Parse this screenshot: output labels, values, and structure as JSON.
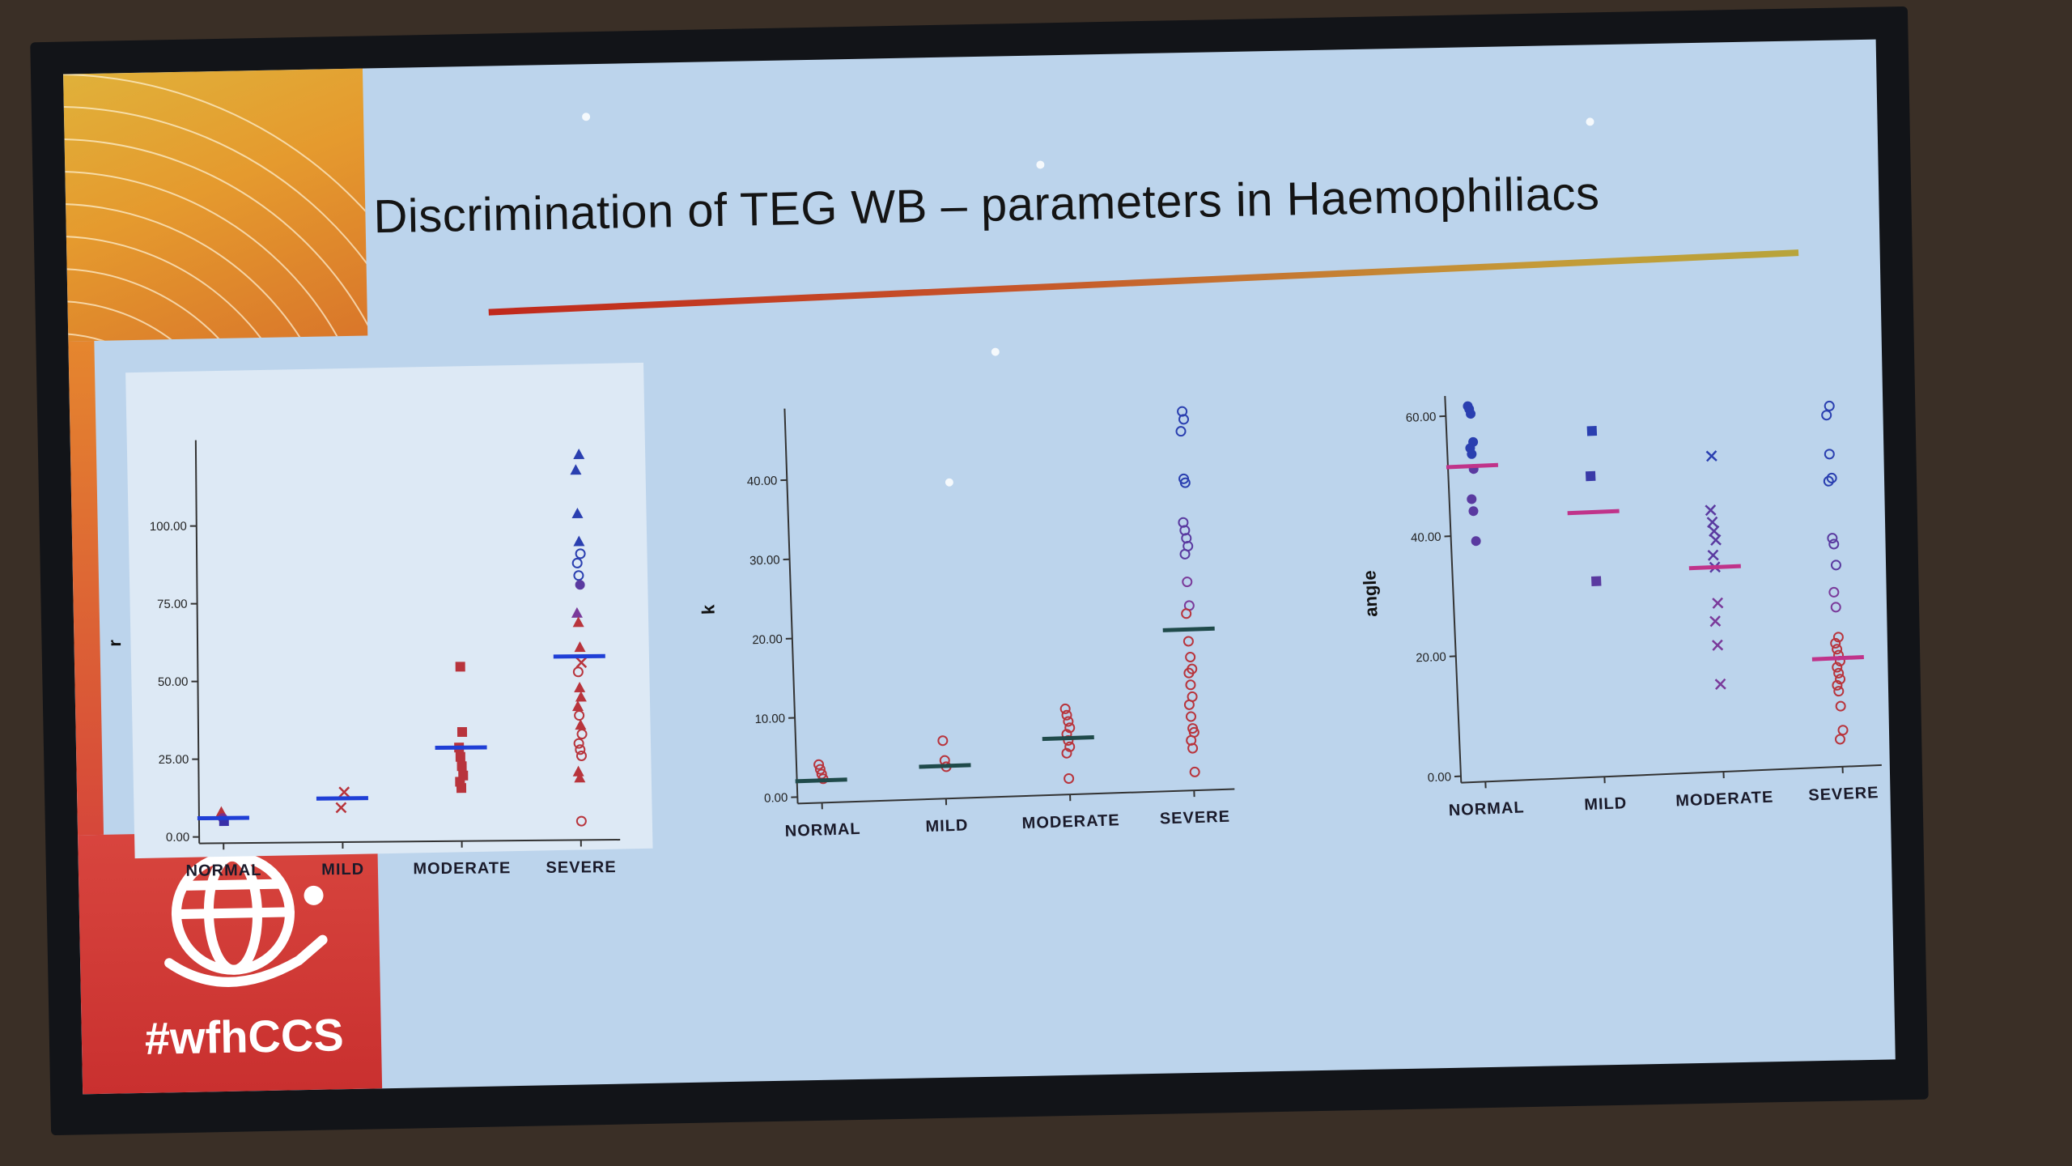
{
  "slide": {
    "title": "Discrimination of TEG WB – parameters in Haemophiliacs",
    "hashtag": "#wfhCCS",
    "brand_colors": {
      "orange": "#e59a2e",
      "red": "#d23b35"
    },
    "logo_icon": "globe-hand-icon"
  },
  "chart_data": [
    {
      "type": "scatter",
      "title": "",
      "ylabel": "r",
      "xlabel": "",
      "categories": [
        "NORMAL",
        "MILD",
        "MODERATE",
        "SEVERE"
      ],
      "yticks": [
        "0.00",
        "25.00",
        "50.00",
        "75.00",
        "100.00"
      ],
      "ylim": [
        0,
        125
      ],
      "mean_color": "#1f3fd6",
      "points": [
        {
          "cat": "NORMAL",
          "y": 8,
          "marker": "triangle",
          "color": "#b8343c"
        },
        {
          "cat": "NORMAL",
          "y": 6,
          "marker": "circle-filled",
          "color": "#7a2e8a"
        },
        {
          "cat": "NORMAL",
          "y": 5,
          "marker": "square",
          "color": "#3a2fa8"
        },
        {
          "cat": "MILD",
          "y": 14,
          "marker": "x",
          "color": "#b8343c"
        },
        {
          "cat": "MILD",
          "y": 9,
          "marker": "x",
          "color": "#b8343c"
        },
        {
          "cat": "MODERATE",
          "y": 54,
          "marker": "square",
          "color": "#b8343c"
        },
        {
          "cat": "MODERATE",
          "y": 33,
          "marker": "square",
          "color": "#b8343c"
        },
        {
          "cat": "MODERATE",
          "y": 28,
          "marker": "square",
          "color": "#b8343c"
        },
        {
          "cat": "MODERATE",
          "y": 25,
          "marker": "square",
          "color": "#b8343c"
        },
        {
          "cat": "MODERATE",
          "y": 22,
          "marker": "square",
          "color": "#b8343c"
        },
        {
          "cat": "MODERATE",
          "y": 19,
          "marker": "square",
          "color": "#b8343c"
        },
        {
          "cat": "MODERATE",
          "y": 17,
          "marker": "square",
          "color": "#b8343c"
        },
        {
          "cat": "MODERATE",
          "y": 15,
          "marker": "square",
          "color": "#b8343c"
        },
        {
          "cat": "SEVERE",
          "y": 122,
          "marker": "triangle",
          "color": "#2a3fb0"
        },
        {
          "cat": "SEVERE",
          "y": 117,
          "marker": "triangle",
          "color": "#2a3fb0"
        },
        {
          "cat": "SEVERE",
          "y": 103,
          "marker": "triangle",
          "color": "#2a3fb0"
        },
        {
          "cat": "SEVERE",
          "y": 94,
          "marker": "triangle",
          "color": "#2a3fb0"
        },
        {
          "cat": "SEVERE",
          "y": 90,
          "marker": "circle",
          "color": "#2a3fb0"
        },
        {
          "cat": "SEVERE",
          "y": 87,
          "marker": "circle",
          "color": "#2a3fb0"
        },
        {
          "cat": "SEVERE",
          "y": 83,
          "marker": "circle",
          "color": "#2a3fb0"
        },
        {
          "cat": "SEVERE",
          "y": 80,
          "marker": "circle-filled",
          "color": "#5a3aa0"
        },
        {
          "cat": "SEVERE",
          "y": 71,
          "marker": "triangle",
          "color": "#7a3a9a"
        },
        {
          "cat": "SEVERE",
          "y": 68,
          "marker": "triangle",
          "color": "#b8343c"
        },
        {
          "cat": "SEVERE",
          "y": 60,
          "marker": "triangle",
          "color": "#b8343c"
        },
        {
          "cat": "SEVERE",
          "y": 55,
          "marker": "x",
          "color": "#b8343c"
        },
        {
          "cat": "SEVERE",
          "y": 52,
          "marker": "circle",
          "color": "#b8343c"
        },
        {
          "cat": "SEVERE",
          "y": 47,
          "marker": "triangle",
          "color": "#b8343c"
        },
        {
          "cat": "SEVERE",
          "y": 44,
          "marker": "triangle",
          "color": "#b8343c"
        },
        {
          "cat": "SEVERE",
          "y": 41,
          "marker": "triangle",
          "color": "#b8343c"
        },
        {
          "cat": "SEVERE",
          "y": 38,
          "marker": "circle",
          "color": "#b8343c"
        },
        {
          "cat": "SEVERE",
          "y": 35,
          "marker": "triangle",
          "color": "#b8343c"
        },
        {
          "cat": "SEVERE",
          "y": 32,
          "marker": "circle",
          "color": "#b8343c"
        },
        {
          "cat": "SEVERE",
          "y": 29,
          "marker": "circle",
          "color": "#b8343c"
        },
        {
          "cat": "SEVERE",
          "y": 27,
          "marker": "circle",
          "color": "#b8343c"
        },
        {
          "cat": "SEVERE",
          "y": 25,
          "marker": "circle",
          "color": "#b8343c"
        },
        {
          "cat": "SEVERE",
          "y": 20,
          "marker": "triangle",
          "color": "#b8343c"
        },
        {
          "cat": "SEVERE",
          "y": 18,
          "marker": "triangle",
          "color": "#b8343c"
        },
        {
          "cat": "SEVERE",
          "y": 4,
          "marker": "circle",
          "color": "#b8343c"
        }
      ],
      "means": [
        {
          "cat": "NORMAL",
          "y": 6
        },
        {
          "cat": "MILD",
          "y": 12
        },
        {
          "cat": "MODERATE",
          "y": 28
        },
        {
          "cat": "SEVERE",
          "y": 57
        }
      ]
    },
    {
      "type": "scatter",
      "title": "",
      "ylabel": "k",
      "xlabel": "",
      "categories": [
        "NORMAL",
        "MILD",
        "MODERATE",
        "SEVERE"
      ],
      "yticks": [
        "0.00",
        "10.00",
        "20.00",
        "30.00",
        "40.00"
      ],
      "ylim": [
        0,
        48
      ],
      "mean_color": "#1f4a4a",
      "points": [
        {
          "cat": "NORMAL",
          "y": 4,
          "marker": "circle",
          "color": "#b8343c"
        },
        {
          "cat": "NORMAL",
          "y": 3.4,
          "marker": "circle",
          "color": "#b8343c"
        },
        {
          "cat": "NORMAL",
          "y": 2.8,
          "marker": "circle",
          "color": "#b8343c"
        },
        {
          "cat": "NORMAL",
          "y": 2.2,
          "marker": "circle",
          "color": "#b8343c"
        },
        {
          "cat": "MILD",
          "y": 6.5,
          "marker": "circle",
          "color": "#b8343c"
        },
        {
          "cat": "MILD",
          "y": 4,
          "marker": "circle",
          "color": "#b8343c"
        },
        {
          "cat": "MILD",
          "y": 3.2,
          "marker": "circle",
          "color": "#b8343c"
        },
        {
          "cat": "MODERATE",
          "y": 10,
          "marker": "circle",
          "color": "#b8343c"
        },
        {
          "cat": "MODERATE",
          "y": 9.2,
          "marker": "circle",
          "color": "#b8343c"
        },
        {
          "cat": "MODERATE",
          "y": 8.4,
          "marker": "circle",
          "color": "#b8343c"
        },
        {
          "cat": "MODERATE",
          "y": 7.6,
          "marker": "circle",
          "color": "#b8343c"
        },
        {
          "cat": "MODERATE",
          "y": 6.8,
          "marker": "circle",
          "color": "#b8343c"
        },
        {
          "cat": "MODERATE",
          "y": 6.0,
          "marker": "circle",
          "color": "#b8343c"
        },
        {
          "cat": "MODERATE",
          "y": 5.2,
          "marker": "circle",
          "color": "#b8343c"
        },
        {
          "cat": "MODERATE",
          "y": 4.4,
          "marker": "circle",
          "color": "#b8343c"
        },
        {
          "cat": "MODERATE",
          "y": 1.2,
          "marker": "circle",
          "color": "#b8343c"
        },
        {
          "cat": "SEVERE",
          "y": 47,
          "marker": "circle",
          "color": "#2a3fb0"
        },
        {
          "cat": "SEVERE",
          "y": 46,
          "marker": "circle",
          "color": "#2a3fb0"
        },
        {
          "cat": "SEVERE",
          "y": 44.5,
          "marker": "circle",
          "color": "#2a3fb0"
        },
        {
          "cat": "SEVERE",
          "y": 38.5,
          "marker": "circle",
          "color": "#2a3fb0"
        },
        {
          "cat": "SEVERE",
          "y": 38,
          "marker": "circle",
          "color": "#2a3fb0"
        },
        {
          "cat": "SEVERE",
          "y": 33,
          "marker": "circle",
          "color": "#5a3aa0"
        },
        {
          "cat": "SEVERE",
          "y": 32,
          "marker": "circle",
          "color": "#5a3aa0"
        },
        {
          "cat": "SEVERE",
          "y": 31,
          "marker": "circle",
          "color": "#5a3aa0"
        },
        {
          "cat": "SEVERE",
          "y": 30,
          "marker": "circle",
          "color": "#5a3aa0"
        },
        {
          "cat": "SEVERE",
          "y": 29,
          "marker": "circle",
          "color": "#5a3aa0"
        },
        {
          "cat": "SEVERE",
          "y": 25.5,
          "marker": "circle",
          "color": "#7a3a9a"
        },
        {
          "cat": "SEVERE",
          "y": 22.5,
          "marker": "circle",
          "color": "#7a3a9a"
        },
        {
          "cat": "SEVERE",
          "y": 21.5,
          "marker": "circle",
          "color": "#b8343c"
        },
        {
          "cat": "SEVERE",
          "y": 18,
          "marker": "circle",
          "color": "#b8343c"
        },
        {
          "cat": "SEVERE",
          "y": 16,
          "marker": "circle",
          "color": "#b8343c"
        },
        {
          "cat": "SEVERE",
          "y": 14.5,
          "marker": "circle",
          "color": "#b8343c"
        },
        {
          "cat": "SEVERE",
          "y": 14,
          "marker": "circle",
          "color": "#b8343c"
        },
        {
          "cat": "SEVERE",
          "y": 12.5,
          "marker": "circle",
          "color": "#b8343c"
        },
        {
          "cat": "SEVERE",
          "y": 11,
          "marker": "circle",
          "color": "#b8343c"
        },
        {
          "cat": "SEVERE",
          "y": 10,
          "marker": "circle",
          "color": "#b8343c"
        },
        {
          "cat": "SEVERE",
          "y": 8.5,
          "marker": "circle",
          "color": "#b8343c"
        },
        {
          "cat": "SEVERE",
          "y": 7,
          "marker": "circle",
          "color": "#b8343c"
        },
        {
          "cat": "SEVERE",
          "y": 6.5,
          "marker": "circle",
          "color": "#b8343c"
        },
        {
          "cat": "SEVERE",
          "y": 5.5,
          "marker": "circle",
          "color": "#b8343c"
        },
        {
          "cat": "SEVERE",
          "y": 4.5,
          "marker": "circle",
          "color": "#b8343c"
        },
        {
          "cat": "SEVERE",
          "y": 1.5,
          "marker": "circle",
          "color": "#b8343c"
        }
      ],
      "means": [
        {
          "cat": "NORMAL",
          "y": 2
        },
        {
          "cat": "MILD",
          "y": 3.3
        },
        {
          "cat": "MODERATE",
          "y": 6.3
        },
        {
          "cat": "SEVERE",
          "y": 19.5
        }
      ]
    },
    {
      "type": "scatter",
      "title": "",
      "ylabel": "angle",
      "xlabel": "",
      "categories": [
        "NORMAL",
        "MILD",
        "MODERATE",
        "SEVERE"
      ],
      "yticks": [
        "0.00",
        "20.00",
        "40.00",
        "60.00"
      ],
      "ylim": [
        0,
        62
      ],
      "mean_color": "#c0338a",
      "points": [
        {
          "cat": "NORMAL",
          "y": 61.5,
          "marker": "circle-filled",
          "color": "#2a3fb0"
        },
        {
          "cat": "NORMAL",
          "y": 61,
          "marker": "circle-filled",
          "color": "#2a3fb0"
        },
        {
          "cat": "NORMAL",
          "y": 60.2,
          "marker": "circle-filled",
          "color": "#2a3fb0"
        },
        {
          "cat": "NORMAL",
          "y": 55.5,
          "marker": "circle-filled",
          "color": "#2a3fb0"
        },
        {
          "cat": "NORMAL",
          "y": 54.5,
          "marker": "circle-filled",
          "color": "#2a3fb0"
        },
        {
          "cat": "NORMAL",
          "y": 53.5,
          "marker": "circle-filled",
          "color": "#2a3fb0"
        },
        {
          "cat": "NORMAL",
          "y": 51,
          "marker": "circle-filled",
          "color": "#5a3aa0"
        },
        {
          "cat": "NORMAL",
          "y": 46,
          "marker": "circle-filled",
          "color": "#5a3aa0"
        },
        {
          "cat": "NORMAL",
          "y": 44,
          "marker": "circle-filled",
          "color": "#5a3aa0"
        },
        {
          "cat": "NORMAL",
          "y": 39,
          "marker": "circle-filled",
          "color": "#5a3aa0"
        },
        {
          "cat": "MILD",
          "y": 56.5,
          "marker": "square",
          "color": "#2a3fb0"
        },
        {
          "cat": "MILD",
          "y": 49,
          "marker": "square",
          "color": "#3a3aa8"
        },
        {
          "cat": "MILD",
          "y": 31.5,
          "marker": "square",
          "color": "#5a3aa0"
        },
        {
          "cat": "MODERATE",
          "y": 51.5,
          "marker": "x",
          "color": "#2a3fb0"
        },
        {
          "cat": "MODERATE",
          "y": 42.5,
          "marker": "x",
          "color": "#5a3aa0"
        },
        {
          "cat": "MODERATE",
          "y": 40.5,
          "marker": "x",
          "color": "#5a3aa0"
        },
        {
          "cat": "MODERATE",
          "y": 39,
          "marker": "x",
          "color": "#5a3aa0"
        },
        {
          "cat": "MODERATE",
          "y": 37.5,
          "marker": "x",
          "color": "#5a3aa0"
        },
        {
          "cat": "MODERATE",
          "y": 35,
          "marker": "x",
          "color": "#5a3aa0"
        },
        {
          "cat": "MODERATE",
          "y": 33,
          "marker": "x",
          "color": "#5a3aa0"
        },
        {
          "cat": "MODERATE",
          "y": 27,
          "marker": "x",
          "color": "#7a3a9a"
        },
        {
          "cat": "MODERATE",
          "y": 24,
          "marker": "x",
          "color": "#7a3a9a"
        },
        {
          "cat": "MODERATE",
          "y": 20,
          "marker": "x",
          "color": "#7a3a9a"
        },
        {
          "cat": "MODERATE",
          "y": 13.5,
          "marker": "x",
          "color": "#7a3a9a"
        },
        {
          "cat": "SEVERE",
          "y": 59,
          "marker": "circle",
          "color": "#2a3fb0"
        },
        {
          "cat": "SEVERE",
          "y": 57.5,
          "marker": "circle",
          "color": "#2a3fb0"
        },
        {
          "cat": "SEVERE",
          "y": 51,
          "marker": "circle",
          "color": "#2a3fb0"
        },
        {
          "cat": "SEVERE",
          "y": 47,
          "marker": "circle",
          "color": "#2a3fb0"
        },
        {
          "cat": "SEVERE",
          "y": 46.5,
          "marker": "circle",
          "color": "#2a3fb0"
        },
        {
          "cat": "SEVERE",
          "y": 37,
          "marker": "circle",
          "color": "#5a3aa0"
        },
        {
          "cat": "SEVERE",
          "y": 36,
          "marker": "circle",
          "color": "#5a3aa0"
        },
        {
          "cat": "SEVERE",
          "y": 32.5,
          "marker": "circle",
          "color": "#5a3aa0"
        },
        {
          "cat": "SEVERE",
          "y": 28,
          "marker": "circle",
          "color": "#7a3a9a"
        },
        {
          "cat": "SEVERE",
          "y": 25.5,
          "marker": "circle",
          "color": "#7a3a9a"
        },
        {
          "cat": "SEVERE",
          "y": 20.5,
          "marker": "circle",
          "color": "#b8343c"
        },
        {
          "cat": "SEVERE",
          "y": 19.5,
          "marker": "circle",
          "color": "#b8343c"
        },
        {
          "cat": "SEVERE",
          "y": 18.5,
          "marker": "circle",
          "color": "#b8343c"
        },
        {
          "cat": "SEVERE",
          "y": 17.5,
          "marker": "circle",
          "color": "#b8343c"
        },
        {
          "cat": "SEVERE",
          "y": 16.5,
          "marker": "circle",
          "color": "#b8343c"
        },
        {
          "cat": "SEVERE",
          "y": 15.5,
          "marker": "circle",
          "color": "#b8343c"
        },
        {
          "cat": "SEVERE",
          "y": 14.5,
          "marker": "circle",
          "color": "#b8343c"
        },
        {
          "cat": "SEVERE",
          "y": 13.5,
          "marker": "circle",
          "color": "#b8343c"
        },
        {
          "cat": "SEVERE",
          "y": 12.5,
          "marker": "circle",
          "color": "#b8343c"
        },
        {
          "cat": "SEVERE",
          "y": 11.5,
          "marker": "circle",
          "color": "#b8343c"
        },
        {
          "cat": "SEVERE",
          "y": 9,
          "marker": "circle",
          "color": "#b8343c"
        },
        {
          "cat": "SEVERE",
          "y": 5,
          "marker": "circle",
          "color": "#b8343c"
        },
        {
          "cat": "SEVERE",
          "y": 3.5,
          "marker": "circle",
          "color": "#b8343c"
        }
      ],
      "means": [
        {
          "cat": "NORMAL",
          "y": 51.5
        },
        {
          "cat": "MILD",
          "y": 43
        },
        {
          "cat": "MODERATE",
          "y": 33
        },
        {
          "cat": "SEVERE",
          "y": 17
        }
      ]
    }
  ]
}
